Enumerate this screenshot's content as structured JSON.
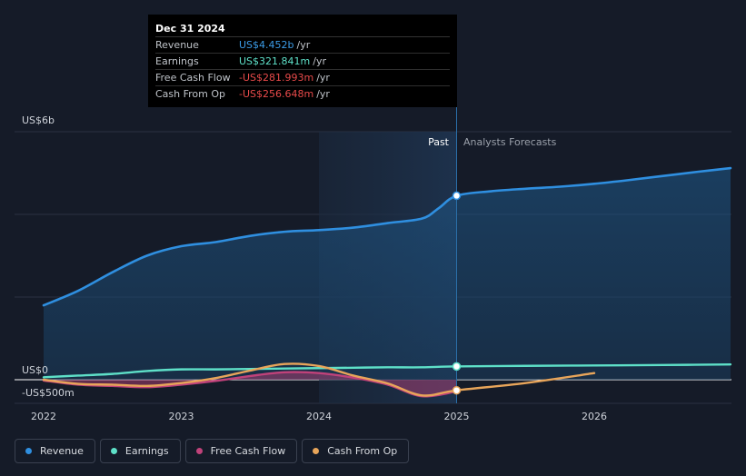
{
  "tooltip": {
    "date": "Dec 31 2024",
    "rows": [
      {
        "label": "Revenue",
        "value": "US$4.452b",
        "unit": "/yr",
        "color": "#3b9be6"
      },
      {
        "label": "Earnings",
        "value": "US$321.841m",
        "unit": "/yr",
        "color": "#5ee0c8"
      },
      {
        "label": "Free Cash Flow",
        "value": "-US$281.993m",
        "unit": "/yr",
        "color": "#e84a4a"
      },
      {
        "label": "Cash From Op",
        "value": "-US$256.648m",
        "unit": "/yr",
        "color": "#e84a4a"
      }
    ]
  },
  "labels": {
    "past": "Past",
    "forecast": "Analysts Forecasts"
  },
  "legend": [
    {
      "label": "Revenue",
      "color": "#2f8fe0"
    },
    {
      "label": "Earnings",
      "color": "#5ee0c8"
    },
    {
      "label": "Free Cash Flow",
      "color": "#c0427a"
    },
    {
      "label": "Cash From Op",
      "color": "#e8a55a"
    }
  ],
  "chart_data": {
    "type": "line",
    "y_ticks": [
      {
        "value": 6000,
        "label": "US$6b"
      },
      {
        "value": 0,
        "label": "US$0"
      },
      {
        "value": -500,
        "label": "-US$500m"
      }
    ],
    "x_ticks": [
      {
        "value": 2022.0,
        "label": "2022"
      },
      {
        "value": 2023.0,
        "label": "2023"
      },
      {
        "value": 2024.0,
        "label": "2024"
      },
      {
        "value": 2025.0,
        "label": "2025"
      },
      {
        "value": 2026.0,
        "label": "2026"
      }
    ],
    "xlim": [
      2021.75,
      2026.99
    ],
    "ylim": [
      -550,
      5500
    ],
    "past_end": 2025.0,
    "series": [
      {
        "name": "Revenue",
        "color": "#2f8fe0",
        "fill": true,
        "points": [
          [
            2022.0,
            1800
          ],
          [
            2022.25,
            2150
          ],
          [
            2022.5,
            2600
          ],
          [
            2022.75,
            3000
          ],
          [
            2023.0,
            3230
          ],
          [
            2023.25,
            3330
          ],
          [
            2023.5,
            3480
          ],
          [
            2023.75,
            3580
          ],
          [
            2024.0,
            3620
          ],
          [
            2024.25,
            3680
          ],
          [
            2024.5,
            3790
          ],
          [
            2024.75,
            3900
          ],
          [
            2024.87,
            4150
          ],
          [
            2025.0,
            4452
          ],
          [
            2025.25,
            4560
          ],
          [
            2025.5,
            4620
          ],
          [
            2025.75,
            4670
          ],
          [
            2026.0,
            4740
          ],
          [
            2026.25,
            4830
          ],
          [
            2026.5,
            4930
          ],
          [
            2026.75,
            5030
          ],
          [
            2026.99,
            5120
          ]
        ]
      },
      {
        "name": "Earnings",
        "color": "#5ee0c8",
        "fill": false,
        "points": [
          [
            2022.0,
            60
          ],
          [
            2022.25,
            100
          ],
          [
            2022.5,
            140
          ],
          [
            2022.75,
            210
          ],
          [
            2023.0,
            250
          ],
          [
            2023.25,
            250
          ],
          [
            2023.5,
            260
          ],
          [
            2023.75,
            270
          ],
          [
            2024.0,
            280
          ],
          [
            2024.25,
            290
          ],
          [
            2024.5,
            300
          ],
          [
            2024.75,
            300
          ],
          [
            2025.0,
            322
          ],
          [
            2025.5,
            335
          ],
          [
            2026.0,
            345
          ],
          [
            2026.5,
            355
          ],
          [
            2026.99,
            370
          ]
        ]
      },
      {
        "name": "Free Cash Flow",
        "color": "#c0427a",
        "fill": true,
        "points": [
          [
            2022.0,
            -20
          ],
          [
            2022.25,
            -120
          ],
          [
            2022.5,
            -150
          ],
          [
            2022.75,
            -180
          ],
          [
            2023.0,
            -120
          ],
          [
            2023.25,
            -30
          ],
          [
            2023.5,
            90
          ],
          [
            2023.75,
            180
          ],
          [
            2024.0,
            160
          ],
          [
            2024.25,
            50
          ],
          [
            2024.5,
            -120
          ],
          [
            2024.75,
            -400
          ],
          [
            2025.0,
            -282
          ]
        ]
      },
      {
        "name": "Cash From Op",
        "color": "#e8a55a",
        "fill": false,
        "points": [
          [
            2022.0,
            0
          ],
          [
            2022.25,
            -100
          ],
          [
            2022.5,
            -120
          ],
          [
            2022.75,
            -150
          ],
          [
            2023.0,
            -80
          ],
          [
            2023.25,
            40
          ],
          [
            2023.5,
            220
          ],
          [
            2023.75,
            380
          ],
          [
            2024.0,
            330
          ],
          [
            2024.25,
            100
          ],
          [
            2024.5,
            -90
          ],
          [
            2024.75,
            -380
          ],
          [
            2025.0,
            -257
          ],
          [
            2025.5,
            -80
          ],
          [
            2026.0,
            160
          ]
        ]
      }
    ],
    "highlight_points": [
      {
        "series": "Revenue",
        "x": 2025.0,
        "y": 4452
      },
      {
        "series": "Earnings",
        "x": 2025.0,
        "y": 322
      },
      {
        "series": "Cash From Op",
        "x": 2025.0,
        "y": -257
      }
    ]
  }
}
